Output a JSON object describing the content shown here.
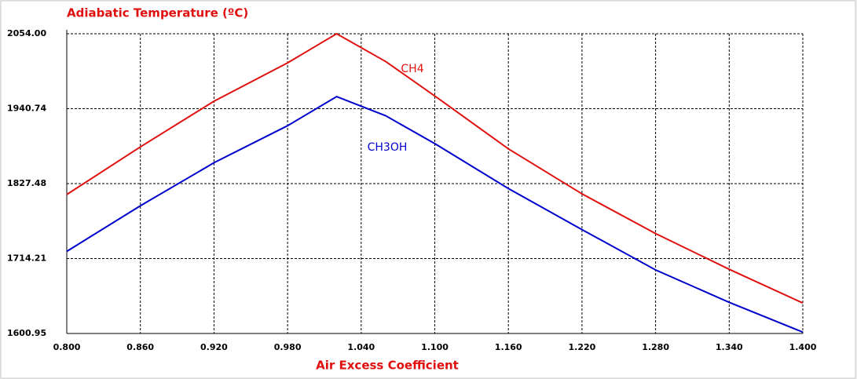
{
  "chart_data": {
    "type": "line",
    "title": "Adiabatic Temperature (ºC)",
    "x_label": "Air Excess Coefficient",
    "x": [
      0.8,
      0.86,
      0.92,
      0.98,
      1.02,
      1.06,
      1.1,
      1.16,
      1.22,
      1.28,
      1.34,
      1.4
    ],
    "series": [
      {
        "name": "CH4",
        "color": "#e01010",
        "values": [
          1811,
          1883,
          1952,
          2010,
          2054,
          2012,
          1960,
          1880,
          1812,
          1752,
          1698,
          1647
        ]
      },
      {
        "name": "CH3OH",
        "color": "#0000cc",
        "values": [
          1725,
          1794,
          1859,
          1915,
          1959,
          1930,
          1888,
          1820,
          1758,
          1697,
          1648,
          1603
        ]
      }
    ],
    "xlim": [
      0.8,
      1.4
    ],
    "xticks": [
      {
        "value": 0.8,
        "label": "0.800"
      },
      {
        "value": 0.86,
        "label": "0.860"
      },
      {
        "value": 0.92,
        "label": "0.920"
      },
      {
        "value": 0.98,
        "label": "0.980"
      },
      {
        "value": 1.04,
        "label": "1.040"
      },
      {
        "value": 1.1,
        "label": "1.100"
      },
      {
        "value": 1.16,
        "label": "1.160"
      },
      {
        "value": 1.22,
        "label": "1.220"
      },
      {
        "value": 1.28,
        "label": "1.280"
      },
      {
        "value": 1.34,
        "label": "1.340"
      },
      {
        "value": 1.4,
        "label": "1.400"
      }
    ],
    "ylim": [
      1600.95,
      2054
    ],
    "yticks": [
      1600.95,
      1714.21,
      1827.48,
      1940.74,
      {
        "value": 2054,
        "label": "2054.00"
      }
    ],
    "grid": true
  }
}
